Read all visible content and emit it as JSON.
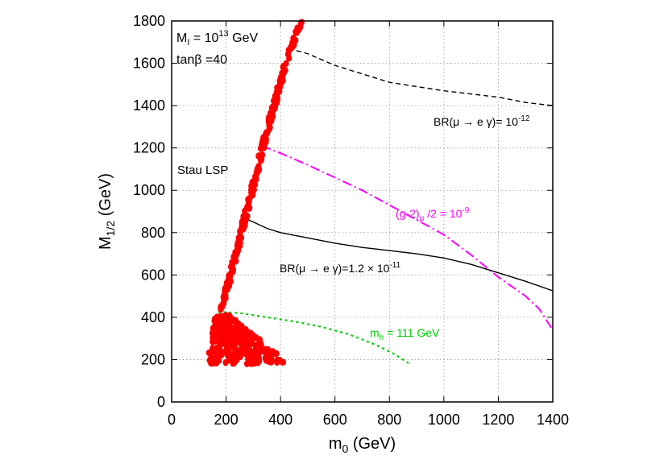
{
  "chart_data": {
    "type": "scatter",
    "xlabel": "m",
    "xlabel_sub": "0",
    "xlabel_unit": " (GeV)",
    "ylabel": "M",
    "ylabel_sub": "1/2",
    "ylabel_unit": " (GeV)",
    "xlim": [
      0,
      1400
    ],
    "ylim": [
      0,
      1800
    ],
    "x_ticks": [
      0,
      200,
      400,
      600,
      800,
      1000,
      1200,
      1400
    ],
    "y_ticks": [
      0,
      200,
      400,
      600,
      800,
      1000,
      1200,
      1400,
      1600,
      1800
    ],
    "grid": true,
    "info_text": {
      "line1_base": "M",
      "line1_sub": "I",
      "line1_mid": " = 10",
      "line1_sup": "13",
      "line1_end": " GeV",
      "line2": "tanβ =40"
    },
    "region_label": "Stau LSP",
    "series": [
      {
        "kind": "curve",
        "color": "#000000",
        "dash": "6,4",
        "points": [
          [
            430,
            1670
          ],
          [
            500,
            1645
          ],
          [
            600,
            1590
          ],
          [
            700,
            1550
          ],
          [
            800,
            1510
          ],
          [
            900,
            1490
          ],
          [
            1000,
            1470
          ],
          [
            1100,
            1455
          ],
          [
            1200,
            1440
          ],
          [
            1300,
            1415
          ],
          [
            1400,
            1400
          ]
        ],
        "label": {
          "pre": "BR(μ → e γ)= 10",
          "sup": "-12",
          "post": "",
          "color": "#000000"
        }
      },
      {
        "kind": "curve",
        "color": "#ff00ff",
        "dash": "12,4,2,4",
        "points": [
          [
            330,
            1210
          ],
          [
            400,
            1175
          ],
          [
            500,
            1120
          ],
          [
            600,
            1060
          ],
          [
            700,
            1000
          ],
          [
            800,
            930
          ],
          [
            900,
            860
          ],
          [
            1000,
            790
          ],
          [
            1100,
            695
          ],
          [
            1200,
            590
          ],
          [
            1300,
            500
          ],
          [
            1350,
            440
          ],
          [
            1400,
            340
          ]
        ],
        "label": {
          "pre": "(g-2)",
          "sub": "μ",
          "mid": " /2 = 10",
          "sup": "-9",
          "post": "",
          "color": "#ff00ff"
        }
      },
      {
        "kind": "curve",
        "color": "#000000",
        "dash": "",
        "points": [
          [
            265,
            870
          ],
          [
            300,
            850
          ],
          [
            350,
            820
          ],
          [
            400,
            800
          ],
          [
            500,
            775
          ],
          [
            600,
            750
          ],
          [
            700,
            730
          ],
          [
            800,
            715
          ],
          [
            900,
            700
          ],
          [
            1000,
            680
          ],
          [
            1100,
            650
          ],
          [
            1200,
            610
          ],
          [
            1300,
            570
          ],
          [
            1400,
            525
          ]
        ],
        "label": {
          "pre": "BR(μ → e γ)=1.2 × 10",
          "sup": "-11",
          "post": "",
          "color": "#000000"
        }
      },
      {
        "kind": "curve",
        "color": "#00cc00",
        "dash": "3,4",
        "points": [
          [
            170,
            425
          ],
          [
            250,
            420
          ],
          [
            350,
            400
          ],
          [
            450,
            380
          ],
          [
            550,
            355
          ],
          [
            650,
            320
          ],
          [
            750,
            270
          ],
          [
            820,
            225
          ],
          [
            880,
            175
          ]
        ],
        "label": {
          "pre": "m",
          "sub": "h",
          "mid": " = 111 GeV",
          "color": "#00cc00"
        }
      },
      {
        "kind": "points",
        "name": "",
        "color": "#ff0000",
        "boundary_left": [
          [
            175,
            430
          ],
          [
            200,
            560
          ],
          [
            230,
            700
          ],
          [
            260,
            860
          ],
          [
            300,
            1060
          ],
          [
            330,
            1220
          ],
          [
            360,
            1360
          ],
          [
            390,
            1500
          ],
          [
            420,
            1630
          ],
          [
            450,
            1740
          ],
          [
            475,
            1800
          ]
        ],
        "boundary_right": [
          [
            185,
            430
          ],
          [
            215,
            560
          ],
          [
            245,
            700
          ],
          [
            275,
            860
          ],
          [
            315,
            1060
          ],
          [
            345,
            1220
          ],
          [
            375,
            1360
          ],
          [
            405,
            1500
          ],
          [
            435,
            1630
          ],
          [
            465,
            1740
          ],
          [
            485,
            1800
          ]
        ],
        "blob": {
          "x_range": [
            130,
            440
          ],
          "y_range": [
            180,
            410
          ]
        }
      }
    ]
  }
}
